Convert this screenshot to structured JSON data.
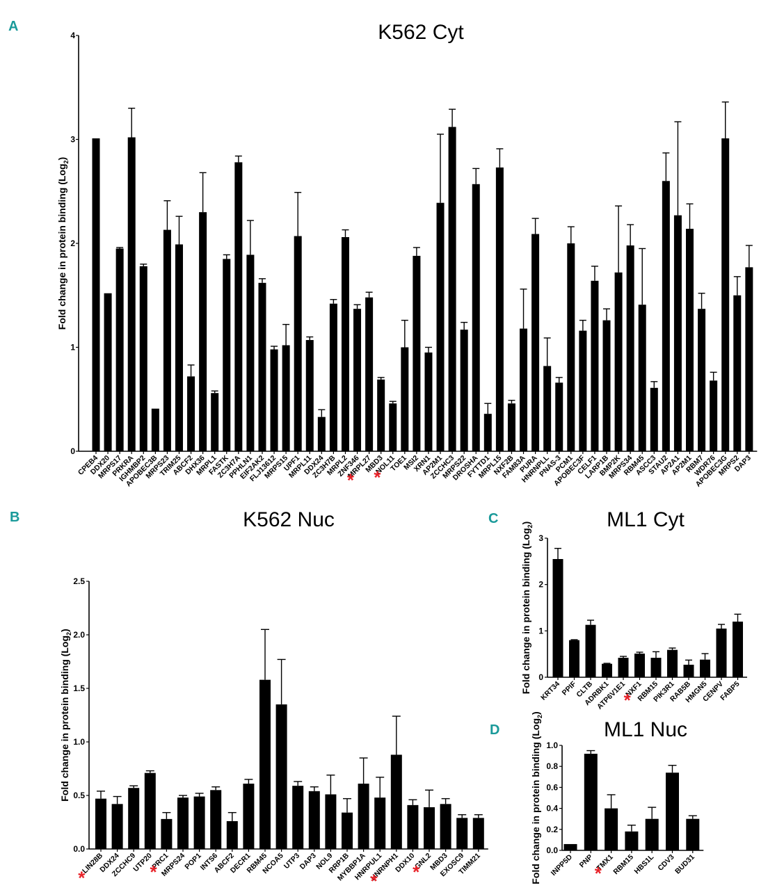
{
  "colors": {
    "bar": "#000000",
    "panel_letter": "#1a9a9a",
    "star": "#e8232a"
  },
  "chart_data": [
    {
      "type": "bar",
      "panel": "A",
      "title": "K562 Cyt",
      "ylabel": "Fold change in protein binding (Log",
      "ylabel_sub": "2",
      "ylabel_end": ")",
      "ylim": [
        0,
        4
      ],
      "yticks": [
        "0",
        "1",
        "2",
        "3",
        "4"
      ],
      "star": "*",
      "categories": [
        "CPEB4",
        "DDX20",
        "MRPS17",
        "PRKRA",
        "IGHMBP2",
        "APOBEC3B",
        "MRPS23",
        "TRIM25",
        "ABCF2",
        "DHX36",
        "MRPL1",
        "FASTK",
        "ZC3H7A",
        "PPHLN1",
        "EIF2AK2",
        "FLJ13612",
        "MRPS15",
        "UPF1",
        "MRPL11",
        "DDX24",
        "ZC3H7B",
        "MRPL2",
        "ZNF346",
        "MRPL27",
        "MBD3",
        "NOL11",
        "TOE1",
        "MSI2",
        "XRN1",
        "AP2M1",
        "ZCCHC3",
        "MRPS22",
        "DROSHA",
        "FYTTD1",
        "MRPL15",
        "NXF2B",
        "FAM83A",
        "PURA",
        "HNRNPLL",
        "PNAS-3",
        "PCM1",
        "APOBEC3F",
        "CELF1",
        "LARP1B",
        "BMP2K",
        "MRPS34",
        "RBM45",
        "ASCC3",
        "STAU2",
        "AP2A1",
        "AP2M1",
        "RBM7",
        "WDR76",
        "APOBEC3G",
        "MRPS2",
        "DAP3"
      ],
      "values": [
        3.01,
        1.52,
        1.95,
        3.02,
        1.78,
        0.41,
        2.13,
        1.99,
        0.72,
        2.3,
        0.56,
        1.85,
        2.78,
        1.89,
        1.62,
        0.98,
        1.02,
        2.07,
        1.07,
        0.33,
        1.42,
        2.06,
        1.37,
        1.48,
        0.69,
        0.46,
        1.0,
        1.88,
        0.95,
        2.39,
        3.12,
        1.17,
        2.57,
        0.36,
        2.73,
        0.46,
        1.18,
        2.09,
        0.82,
        0.66,
        2.0,
        1.16,
        1.64,
        1.26,
        1.72,
        1.98,
        1.41,
        0.61,
        2.6,
        2.27,
        2.14,
        1.37,
        0.68,
        3.01,
        1.5,
        1.77
      ],
      "errors": [
        0.0,
        0.0,
        0.01,
        0.28,
        0.02,
        0.0,
        0.28,
        0.27,
        0.11,
        0.38,
        0.02,
        0.04,
        0.06,
        0.33,
        0.04,
        0.03,
        0.2,
        0.42,
        0.03,
        0.07,
        0.04,
        0.07,
        0.04,
        0.05,
        0.02,
        0.02,
        0.26,
        0.08,
        0.05,
        0.66,
        0.17,
        0.07,
        0.15,
        0.1,
        0.18,
        0.03,
        0.38,
        0.15,
        0.27,
        0.05,
        0.16,
        0.1,
        0.14,
        0.11,
        0.64,
        0.2,
        0.54,
        0.06,
        0.27,
        0.9,
        0.24,
        0.15,
        0.08,
        0.35,
        0.18,
        0.21
      ],
      "starred": [
        "MRPL27",
        "NOL11"
      ]
    },
    {
      "type": "bar",
      "panel": "B",
      "title": "K562 Nuc",
      "ylabel": "Fold change in protein binding (Log",
      "ylabel_sub": "2",
      "ylabel_end": ")",
      "ylim": [
        0,
        2.5
      ],
      "yticks": [
        "0.0",
        "0.5",
        "1.0",
        "1.5",
        "2.0",
        "2.5"
      ],
      "star": "*",
      "categories": [
        "LIN28B",
        "DDX24",
        "ZCCHC9",
        "UTP20",
        "PRC1",
        "MRPS24",
        "POP1",
        "INTS6",
        "ABCF2",
        "DECR1",
        "RBM45",
        "NCOA5",
        "UTP3",
        "DAP3",
        "NOL9",
        "RRP1B",
        "MYBBP1A",
        "HNRPUL1",
        "HNRNPH1",
        "DDX10",
        "GNL2",
        "MBD3",
        "EXOSC9",
        "TIMM21"
      ],
      "values": [
        0.47,
        0.42,
        0.57,
        0.71,
        0.28,
        0.48,
        0.49,
        0.55,
        0.26,
        0.61,
        1.58,
        1.35,
        0.59,
        0.54,
        0.51,
        0.34,
        0.61,
        0.48,
        0.88,
        0.41,
        0.39,
        0.42,
        0.29,
        0.29
      ],
      "errors": [
        0.07,
        0.07,
        0.02,
        0.02,
        0.06,
        0.02,
        0.03,
        0.03,
        0.08,
        0.04,
        0.47,
        0.42,
        0.04,
        0.04,
        0.18,
        0.13,
        0.24,
        0.19,
        0.36,
        0.05,
        0.16,
        0.05,
        0.03,
        0.03
      ],
      "starred": [
        "LIN28B",
        "PRC1",
        "HNRNPH1",
        "GNL2"
      ]
    },
    {
      "type": "bar",
      "panel": "C",
      "title": "ML1 Cyt",
      "ylabel": "Fold change in protein binding (Log",
      "ylabel_sub": "2",
      "ylabel_end": ")",
      "ylim": [
        0,
        3
      ],
      "yticks": [
        "0",
        "1",
        "2",
        "3"
      ],
      "star": "*",
      "categories": [
        "KRT34",
        "PPIF",
        "CLTB",
        "ADRBK1",
        "ATP6V1E1",
        "NXF1",
        "RBM15",
        "PIK3R1",
        "RAB5B",
        "HMGN5",
        "CENPV",
        "FABP5"
      ],
      "values": [
        2.55,
        0.8,
        1.13,
        0.29,
        0.42,
        0.51,
        0.42,
        0.59,
        0.27,
        0.38,
        1.05,
        1.2
      ],
      "errors": [
        0.23,
        0.01,
        0.1,
        0.01,
        0.03,
        0.03,
        0.13,
        0.04,
        0.1,
        0.13,
        0.09,
        0.16
      ],
      "starred": [
        "NXF1"
      ]
    },
    {
      "type": "bar",
      "panel": "D",
      "title": "ML1 Nuc",
      "ylabel": "Fold change in protein binding (Log",
      "ylabel_sub": "2",
      "ylabel_end": ")",
      "ylim": [
        0,
        1.0
      ],
      "yticks": [
        "0.0",
        "0.2",
        "0.4",
        "0.6",
        "0.8",
        "1.0"
      ],
      "star": "*",
      "categories": [
        "INPP5D",
        "PNP",
        "TMX1",
        "RBM15",
        "HBS1L",
        "CDV3",
        "BUD31"
      ],
      "values": [
        0.06,
        0.92,
        0.4,
        0.18,
        0.3,
        0.74,
        0.3
      ],
      "errors": [
        0.0,
        0.03,
        0.13,
        0.06,
        0.11,
        0.07,
        0.03
      ],
      "starred": [
        "TMX1"
      ]
    }
  ]
}
